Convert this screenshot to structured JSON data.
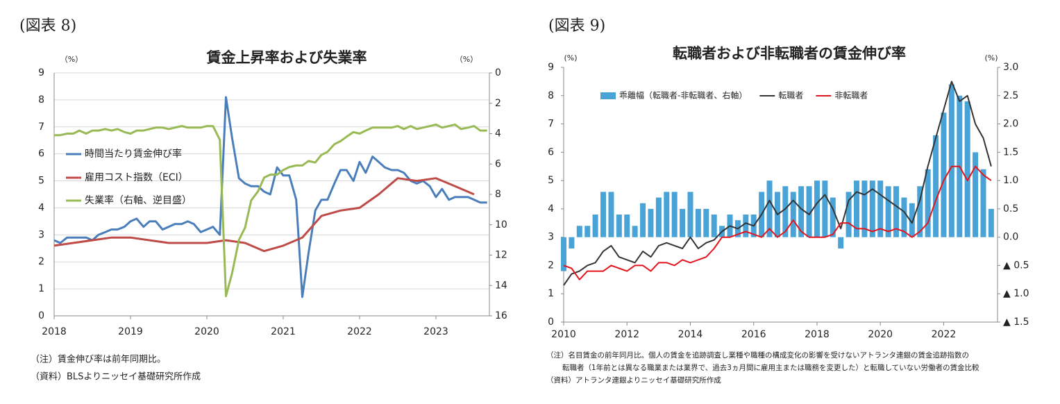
{
  "chart_data": [
    {
      "type": "line",
      "figure_label": "(図表 8)",
      "title": "賃金上昇率および失業率",
      "ylabel": "（%）",
      "y2label": "（%）",
      "xlim": [
        2018,
        2023.7
      ],
      "xticks": [
        2018,
        2019,
        2020,
        2021,
        2022,
        2023
      ],
      "ylim": [
        0,
        9
      ],
      "yticks": [
        0,
        1,
        2,
        3,
        4,
        5,
        6,
        7,
        8,
        9
      ],
      "y2lim": [
        0,
        16
      ],
      "y2ticks": [
        0,
        2,
        4,
        6,
        8,
        10,
        12,
        14,
        16
      ],
      "y2_inverted": true,
      "grid": true,
      "x": [
        2018,
        2018.08,
        2018.17,
        2018.25,
        2018.33,
        2018.42,
        2018.5,
        2018.58,
        2018.67,
        2018.75,
        2018.83,
        2018.92,
        2019,
        2019.08,
        2019.17,
        2019.25,
        2019.33,
        2019.42,
        2019.5,
        2019.58,
        2019.67,
        2019.75,
        2019.83,
        2019.92,
        2020,
        2020.08,
        2020.17,
        2020.25,
        2020.33,
        2020.42,
        2020.5,
        2020.58,
        2020.67,
        2020.75,
        2020.83,
        2020.92,
        2021,
        2021.08,
        2021.17,
        2021.25,
        2021.33,
        2021.42,
        2021.5,
        2021.58,
        2021.67,
        2021.75,
        2021.83,
        2021.92,
        2022,
        2022.08,
        2022.17,
        2022.25,
        2022.33,
        2022.42,
        2022.5,
        2022.58,
        2022.67,
        2022.75,
        2022.83,
        2022.92,
        2023,
        2023.08,
        2023.17,
        2023.25,
        2023.33,
        2023.42,
        2023.5,
        2023.58,
        2023.67
      ],
      "series": [
        {
          "name": "時間当たり賃金伸び率",
          "color": "#4a7ebb",
          "width": 3,
          "values": [
            2.8,
            2.7,
            2.9,
            2.9,
            2.9,
            2.9,
            2.8,
            3.0,
            3.1,
            3.2,
            3.2,
            3.3,
            3.5,
            3.6,
            3.3,
            3.5,
            3.5,
            3.2,
            3.3,
            3.4,
            3.4,
            3.5,
            3.4,
            3.1,
            3.2,
            3.3,
            3.0,
            8.1,
            6.6,
            5.1,
            4.9,
            4.8,
            4.8,
            4.6,
            4.5,
            5.5,
            5.2,
            5.2,
            4.3,
            0.7,
            2.3,
            3.9,
            4.3,
            4.3,
            4.9,
            5.4,
            5.4,
            5.0,
            5.7,
            5.3,
            5.9,
            5.7,
            5.5,
            5.4,
            5.4,
            5.3,
            5.0,
            4.9,
            5.0,
            4.8,
            4.4,
            4.7,
            4.3,
            4.4,
            4.4,
            4.4,
            4.3,
            4.2,
            4.2
          ]
        },
        {
          "name": "雇用コスト指数（ECI）",
          "color": "#be4b48",
          "width": 3,
          "x": [
            2018,
            2018.25,
            2018.5,
            2018.75,
            2019,
            2019.25,
            2019.5,
            2019.75,
            2020,
            2020.25,
            2020.5,
            2020.75,
            2021,
            2021.25,
            2021.5,
            2021.75,
            2022,
            2022.25,
            2022.5,
            2022.75,
            2023,
            2023.25,
            2023.5
          ],
          "values": [
            2.6,
            2.7,
            2.8,
            2.9,
            2.9,
            2.8,
            2.7,
            2.7,
            2.7,
            2.8,
            2.7,
            2.4,
            2.6,
            2.9,
            3.7,
            3.9,
            4.0,
            4.5,
            5.1,
            5.0,
            5.1,
            4.8,
            4.5
          ]
        },
        {
          "name": "失業率（右軸、逆目盛）",
          "color": "#98b954",
          "width": 3,
          "axis": "y2",
          "values": [
            4.1,
            4.1,
            4.0,
            4.0,
            3.8,
            4.0,
            3.8,
            3.8,
            3.7,
            3.8,
            3.7,
            3.9,
            4.0,
            3.8,
            3.8,
            3.7,
            3.6,
            3.6,
            3.7,
            3.6,
            3.5,
            3.6,
            3.6,
            3.6,
            3.5,
            3.5,
            4.4,
            14.7,
            13.2,
            11.0,
            10.2,
            8.4,
            7.8,
            6.9,
            6.7,
            6.7,
            6.4,
            6.2,
            6.1,
            6.1,
            5.8,
            5.9,
            5.4,
            5.2,
            4.7,
            4.5,
            4.2,
            3.9,
            4.0,
            3.8,
            3.6,
            3.6,
            3.6,
            3.6,
            3.5,
            3.7,
            3.5,
            3.7,
            3.6,
            3.5,
            3.4,
            3.6,
            3.5,
            3.4,
            3.7,
            3.6,
            3.5,
            3.8,
            3.8
          ]
        }
      ],
      "notes": [
        "（注）賃金伸び率は前年同期比。",
        "（資料）BLSよりニッセイ基礎研究所作成"
      ]
    },
    {
      "type": "combo",
      "figure_label": "(図表 9)",
      "title": "転職者および非転職者の賃金伸び率",
      "ylabel": "(%)",
      "y2label": "(%)",
      "xlim": [
        2010,
        2023.7
      ],
      "xticks": [
        2010,
        2012,
        2014,
        2016,
        2018,
        2020,
        2022
      ],
      "ylim": [
        0,
        9
      ],
      "yticks": [
        0,
        1,
        2,
        3,
        4,
        5,
        6,
        7,
        8,
        9
      ],
      "y2lim": [
        -1.5,
        3
      ],
      "y2ticks": [
        {
          "value": -1.5,
          "label": "▲ 1.5"
        },
        {
          "value": -1,
          "label": "▲ 1.0"
        },
        {
          "value": -0.5,
          "label": "▲ 0.5"
        },
        {
          "value": 0,
          "label": "0.0"
        },
        0.5,
        {
          "value": 1,
          "label": "1.0"
        },
        1.5,
        {
          "value": 2,
          "label": "2.0"
        },
        2.5,
        {
          "value": 3,
          "label": "3.0"
        }
      ],
      "grid": false,
      "x": [
        2010,
        2010.25,
        2010.5,
        2010.75,
        2011,
        2011.25,
        2011.5,
        2011.75,
        2012,
        2012.25,
        2012.5,
        2012.75,
        2013,
        2013.25,
        2013.5,
        2013.75,
        2014,
        2014.25,
        2014.5,
        2014.75,
        2015,
        2015.25,
        2015.5,
        2015.75,
        2016,
        2016.25,
        2016.5,
        2016.75,
        2017,
        2017.25,
        2017.5,
        2017.75,
        2018,
        2018.25,
        2018.5,
        2018.75,
        2019,
        2019.25,
        2019.5,
        2019.75,
        2020,
        2020.25,
        2020.5,
        2020.75,
        2021,
        2021.25,
        2021.5,
        2021.75,
        2022,
        2022.25,
        2022.5,
        2022.75,
        2023,
        2023.25,
        2023.5
      ],
      "series": [
        {
          "name": "乖離幅（転職者-非転職者、右軸）",
          "type": "bar",
          "axis": "y2",
          "color": "#4aa3d6",
          "values": [
            -0.6,
            -0.2,
            0.2,
            0.2,
            0.4,
            0.8,
            0.8,
            0.4,
            0.4,
            0.2,
            0.6,
            0.5,
            0.7,
            0.8,
            0.8,
            0.5,
            0.8,
            0.5,
            0.5,
            0.4,
            0.2,
            0.4,
            0.3,
            0.4,
            0.4,
            0.8,
            1.0,
            0.8,
            0.9,
            0.8,
            0.9,
            0.9,
            1.0,
            1.0,
            0.7,
            -0.2,
            0.8,
            1.0,
            1.0,
            1.0,
            1.0,
            0.9,
            0.9,
            0.7,
            0.6,
            0.9,
            1.2,
            1.8,
            2.2,
            2.7,
            2.5,
            2.4,
            1.5,
            1.2,
            0.5
          ]
        },
        {
          "name": "転職者",
          "type": "line",
          "color": "#333333",
          "width": 2,
          "values": [
            1.3,
            1.7,
            1.8,
            2.0,
            2.1,
            2.5,
            2.7,
            2.3,
            2.2,
            2.1,
            2.5,
            2.3,
            2.7,
            2.8,
            2.7,
            2.6,
            3.0,
            2.6,
            2.8,
            2.9,
            3.2,
            3.4,
            3.3,
            3.5,
            3.4,
            3.8,
            4.3,
            3.8,
            4.0,
            4.3,
            4.0,
            3.8,
            4.2,
            4.5,
            4.0,
            3.3,
            4.3,
            4.6,
            4.5,
            4.7,
            4.5,
            4.3,
            4.1,
            3.9,
            3.5,
            4.3,
            5.5,
            6.5,
            7.5,
            8.5,
            7.8,
            8.0,
            7.0,
            6.5,
            5.5
          ]
        },
        {
          "name": "非転職者",
          "type": "line",
          "color": "#e3141b",
          "width": 2,
          "values": [
            2.0,
            1.9,
            1.5,
            1.8,
            1.8,
            1.8,
            2.0,
            1.9,
            1.8,
            2.0,
            2.0,
            1.8,
            2.1,
            2.1,
            2.0,
            2.2,
            2.1,
            2.2,
            2.3,
            2.6,
            3.0,
            3.0,
            3.1,
            3.2,
            3.1,
            3.0,
            3.3,
            3.0,
            3.2,
            3.6,
            3.2,
            3.0,
            3.0,
            3.0,
            3.1,
            3.5,
            3.5,
            3.3,
            3.3,
            3.2,
            3.3,
            3.2,
            3.3,
            3.2,
            3.0,
            3.2,
            3.5,
            4.3,
            5.0,
            5.5,
            5.5,
            5.0,
            5.5,
            5.2,
            5.0
          ]
        }
      ],
      "notes": [
        "（注）名目賃金の前年同月比。個人の賃金を追跡調査し業種や職種の構成変化の影響を受けないアトランタ連銀の賃金追跡指数の",
        "転職者（1年前とは異なる職業または業界で、過去3ヵ月間に雇用主または職務を変更した）と転職していない労働者の賃金比較",
        "（資料）アトランタ連銀よりニッセイ基礎研究所作成"
      ]
    }
  ]
}
